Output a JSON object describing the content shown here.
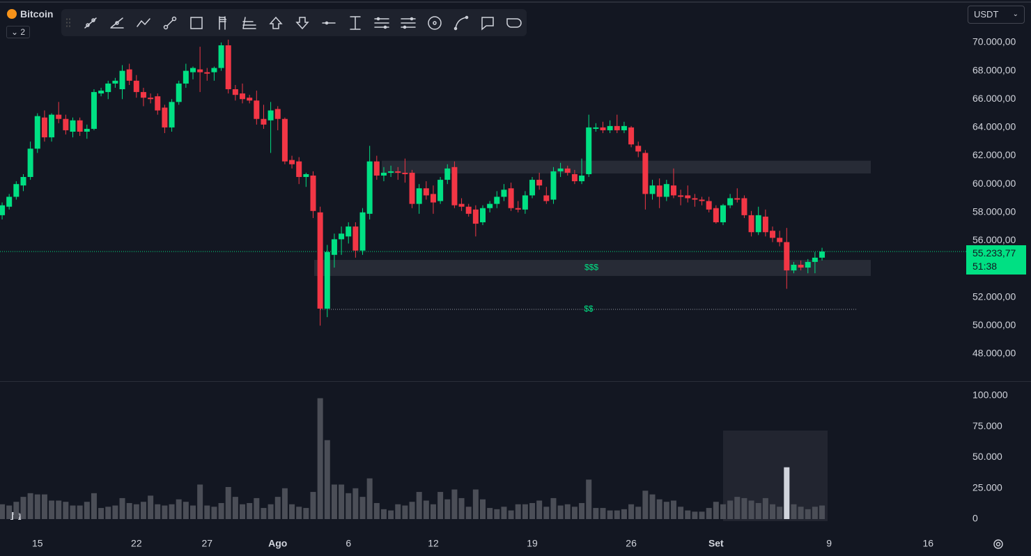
{
  "header": {
    "symbol": "Bitcoin",
    "layouts": "2",
    "currency": "USDT"
  },
  "chart_data": {
    "type": "candlestick",
    "up_color": "#00e083",
    "down_color": "#f23645",
    "xlim": [
      -0.3,
      136.2
    ],
    "xticks": [
      {
        "value": 5,
        "label": "15"
      },
      {
        "value": 19,
        "label": "22"
      },
      {
        "value": 29,
        "label": "27"
      },
      {
        "value": 39,
        "label": "Ago"
      },
      {
        "value": 49,
        "label": "6"
      },
      {
        "value": 61,
        "label": "12"
      },
      {
        "value": 75,
        "label": "19"
      },
      {
        "value": 89,
        "label": "26"
      },
      {
        "value": 101,
        "label": "Set"
      },
      {
        "value": 117,
        "label": "9"
      },
      {
        "value": 131,
        "label": "16"
      }
    ],
    "ylim": [
      46080,
      72756
    ],
    "yticks": [
      {
        "value": 48000,
        "label": "48.000,00"
      },
      {
        "value": 50000,
        "label": "50.000,00"
      },
      {
        "value": 52000,
        "label": "52.000,00"
      },
      {
        "value": 56000,
        "label": "56.000,00"
      },
      {
        "value": 58000,
        "label": "58.000,00"
      },
      {
        "value": 60000,
        "label": "60.000,00"
      },
      {
        "value": 62000,
        "label": "62.000,00"
      },
      {
        "value": 64000,
        "label": "64.000,00"
      },
      {
        "value": 66000,
        "label": "66.000,00"
      },
      {
        "value": 68000,
        "label": "68.000,00"
      },
      {
        "value": 70000,
        "label": "70.000,00"
      }
    ],
    "ohlc": [
      [
        57800,
        58700,
        57500,
        58500
      ],
      [
        58400,
        59300,
        58200,
        59100
      ],
      [
        59100,
        60200,
        58900,
        60000
      ],
      [
        59900,
        60700,
        59500,
        60500
      ],
      [
        60500,
        63000,
        60300,
        62500
      ],
      [
        62500,
        65000,
        62200,
        64800
      ],
      [
        64700,
        65200,
        63000,
        63300
      ],
      [
        63300,
        65000,
        63000,
        64900
      ],
      [
        64900,
        65800,
        64300,
        64600
      ],
      [
        64600,
        64900,
        63500,
        63800
      ],
      [
        63700,
        64700,
        63300,
        64500
      ],
      [
        64500,
        64700,
        63400,
        63700
      ],
      [
        63700,
        64200,
        63200,
        63900
      ],
      [
        63900,
        66700,
        63800,
        66500
      ],
      [
        66400,
        66800,
        66200,
        66600
      ],
      [
        66500,
        67300,
        66000,
        67100
      ],
      [
        67100,
        67500,
        66800,
        67300
      ],
      [
        66700,
        68400,
        66000,
        68000
      ],
      [
        68100,
        68500,
        67000,
        67300
      ],
      [
        67300,
        67700,
        66100,
        66500
      ],
      [
        66500,
        66800,
        65500,
        66100
      ],
      [
        66100,
        66400,
        65700,
        66000
      ],
      [
        66200,
        66400,
        64900,
        65200
      ],
      [
        65400,
        65600,
        63600,
        64000
      ],
      [
        64000,
        66000,
        63700,
        65800
      ],
      [
        65800,
        67300,
        65600,
        67100
      ],
      [
        67100,
        68500,
        66800,
        68000
      ],
      [
        67900,
        68300,
        67400,
        68200
      ],
      [
        68100,
        69700,
        66500,
        67900
      ],
      [
        67900,
        68200,
        67300,
        67800
      ],
      [
        67900,
        68300,
        67300,
        68200
      ],
      [
        68200,
        70000,
        68000,
        69800
      ],
      [
        69800,
        70200,
        66400,
        66700
      ],
      [
        66700,
        67000,
        65900,
        66300
      ],
      [
        66400,
        67100,
        65700,
        66000
      ],
      [
        66100,
        66300,
        65700,
        65900
      ],
      [
        65900,
        66600,
        64200,
        64600
      ],
      [
        64600,
        65600,
        63900,
        64200
      ],
      [
        64500,
        65800,
        62200,
        65200
      ],
      [
        65300,
        65500,
        63800,
        64600
      ],
      [
        64600,
        64700,
        61400,
        61600
      ],
      [
        61700,
        62000,
        61100,
        61400
      ],
      [
        61600,
        61900,
        60000,
        60500
      ],
      [
        60500,
        60800,
        59800,
        60700
      ],
      [
        60600,
        60900,
        57600,
        58100
      ],
      [
        58000,
        58400,
        50000,
        51200
      ],
      [
        51200,
        55700,
        50600,
        55200
      ],
      [
        55000,
        56500,
        54100,
        56100
      ],
      [
        56100,
        57000,
        55000,
        56500
      ],
      [
        56300,
        57300,
        55800,
        57000
      ],
      [
        57000,
        57300,
        54800,
        55300
      ],
      [
        55300,
        58300,
        55000,
        58000
      ],
      [
        57900,
        62700,
        57500,
        61600
      ],
      [
        61600,
        62000,
        60300,
        60600
      ],
      [
        60600,
        61200,
        60200,
        60800
      ],
      [
        60800,
        61300,
        60500,
        60900
      ],
      [
        60900,
        61200,
        60300,
        60800
      ],
      [
        60800,
        61800,
        60100,
        60700
      ],
      [
        60800,
        61000,
        58300,
        58600
      ],
      [
        58600,
        60000,
        57900,
        59700
      ],
      [
        59700,
        60200,
        58900,
        59200
      ],
      [
        59300,
        59900,
        57900,
        58700
      ],
      [
        58800,
        60500,
        58600,
        60300
      ],
      [
        60300,
        61400,
        60000,
        61100
      ],
      [
        61200,
        61600,
        58300,
        58500
      ],
      [
        58600,
        59000,
        58100,
        58400
      ],
      [
        58400,
        58600,
        57700,
        57900
      ],
      [
        58200,
        58500,
        56300,
        57200
      ],
      [
        57300,
        58500,
        57100,
        58300
      ],
      [
        58300,
        58800,
        58000,
        58600
      ],
      [
        58600,
        59500,
        58300,
        59100
      ],
      [
        59100,
        60000,
        58800,
        59600
      ],
      [
        59700,
        60100,
        58100,
        58300
      ],
      [
        58300,
        58800,
        58000,
        58200
      ],
      [
        58200,
        59500,
        57900,
        59200
      ],
      [
        59200,
        60500,
        59000,
        60300
      ],
      [
        60300,
        60800,
        59600,
        59900
      ],
      [
        59200,
        59800,
        58600,
        58800
      ],
      [
        58900,
        61200,
        58600,
        60900
      ],
      [
        60900,
        61500,
        60500,
        61100
      ],
      [
        61100,
        61300,
        60600,
        60800
      ],
      [
        60700,
        61000,
        60000,
        60200
      ],
      [
        60200,
        61800,
        60000,
        60600
      ],
      [
        60700,
        64900,
        60500,
        64000
      ],
      [
        63900,
        64300,
        63700,
        64000
      ],
      [
        64000,
        64400,
        63600,
        63800
      ],
      [
        63800,
        64500,
        63600,
        64100
      ],
      [
        64100,
        64900,
        63600,
        63800
      ],
      [
        63800,
        64400,
        63600,
        64100
      ],
      [
        64000,
        64100,
        62600,
        62800
      ],
      [
        62700,
        63000,
        61900,
        62300
      ],
      [
        62200,
        62400,
        58200,
        59300
      ],
      [
        59300,
        60300,
        58900,
        59900
      ],
      [
        59900,
        60400,
        58300,
        59100
      ],
      [
        59100,
        60300,
        58800,
        60000
      ],
      [
        59900,
        61100,
        59000,
        59200
      ],
      [
        59200,
        59600,
        58500,
        59100
      ],
      [
        59200,
        59900,
        58700,
        59000
      ],
      [
        59000,
        59300,
        58400,
        58900
      ],
      [
        58900,
        59100,
        58500,
        58800
      ],
      [
        58800,
        59100,
        58000,
        58200
      ],
      [
        58300,
        58500,
        57200,
        57300
      ],
      [
        57300,
        58600,
        57100,
        58500
      ],
      [
        58500,
        59300,
        58300,
        59000
      ],
      [
        59000,
        59700,
        58700,
        58900
      ],
      [
        59000,
        59200,
        57600,
        57800
      ],
      [
        57800,
        58100,
        56300,
        56600
      ],
      [
        56600,
        58400,
        56400,
        57800
      ],
      [
        57700,
        58200,
        56300,
        56600
      ],
      [
        56700,
        57000,
        55900,
        56200
      ],
      [
        56200,
        56700,
        55600,
        55900
      ],
      [
        55900,
        56900,
        52600,
        53900
      ],
      [
        53900,
        54500,
        53700,
        54300
      ],
      [
        54300,
        54600,
        53900,
        54100
      ],
      [
        54100,
        54700,
        53700,
        54500
      ],
      [
        54500,
        55200,
        53700,
        54800
      ],
      [
        54800,
        55500,
        54600,
        55233.77
      ]
    ],
    "last_price": {
      "value": 55233.77,
      "label": "55.233,77"
    },
    "countdown": "51:38",
    "zones": [
      {
        "top": 61650,
        "bottom": 60750
      },
      {
        "top": 54640,
        "bottom": 53510,
        "label": "$$$"
      }
    ],
    "level": {
      "value": 51150,
      "label": "$$"
    },
    "volume": {
      "color": "#4b4e57",
      "highlight_color": "#d1d4dc",
      "highlight_index": 111,
      "ylim": [
        -11300,
        111300
      ],
      "yticks": [
        {
          "value": 0,
          "label": "0"
        },
        {
          "value": 25000,
          "label": "25.000"
        },
        {
          "value": 50000,
          "label": "50.000"
        },
        {
          "value": 75000,
          "label": "75.000"
        },
        {
          "value": 100000,
          "label": "100.000"
        }
      ],
      "values": [
        12000,
        11000,
        14000,
        18000,
        21000,
        20000,
        20000,
        15000,
        15000,
        14000,
        11000,
        11000,
        14000,
        21000,
        9000,
        10000,
        11000,
        17000,
        13000,
        12000,
        14000,
        19000,
        12000,
        11000,
        12000,
        16000,
        14000,
        11000,
        28000,
        11000,
        10000,
        13000,
        26000,
        18000,
        12000,
        13000,
        17000,
        9000,
        12000,
        18000,
        25000,
        12000,
        10000,
        9000,
        22000,
        98000,
        64000,
        28000,
        28000,
        21000,
        25000,
        18000,
        33000,
        13000,
        8000,
        7000,
        12000,
        11000,
        14000,
        22000,
        15000,
        12000,
        22000,
        16000,
        24000,
        17000,
        10000,
        24000,
        16000,
        9000,
        8000,
        10000,
        7000,
        12000,
        12000,
        13000,
        15000,
        10000,
        17000,
        11000,
        12000,
        10000,
        13000,
        32000,
        9000,
        9000,
        7000,
        7000,
        8000,
        12000,
        10000,
        23000,
        20000,
        16000,
        14000,
        15000,
        10000,
        7000,
        6000,
        6000,
        9000,
        14000,
        12000,
        15000,
        18000,
        17000,
        15000,
        13000,
        17000,
        12000,
        10000,
        42000,
        12000,
        10000,
        8000,
        10000,
        11000
      ]
    }
  }
}
